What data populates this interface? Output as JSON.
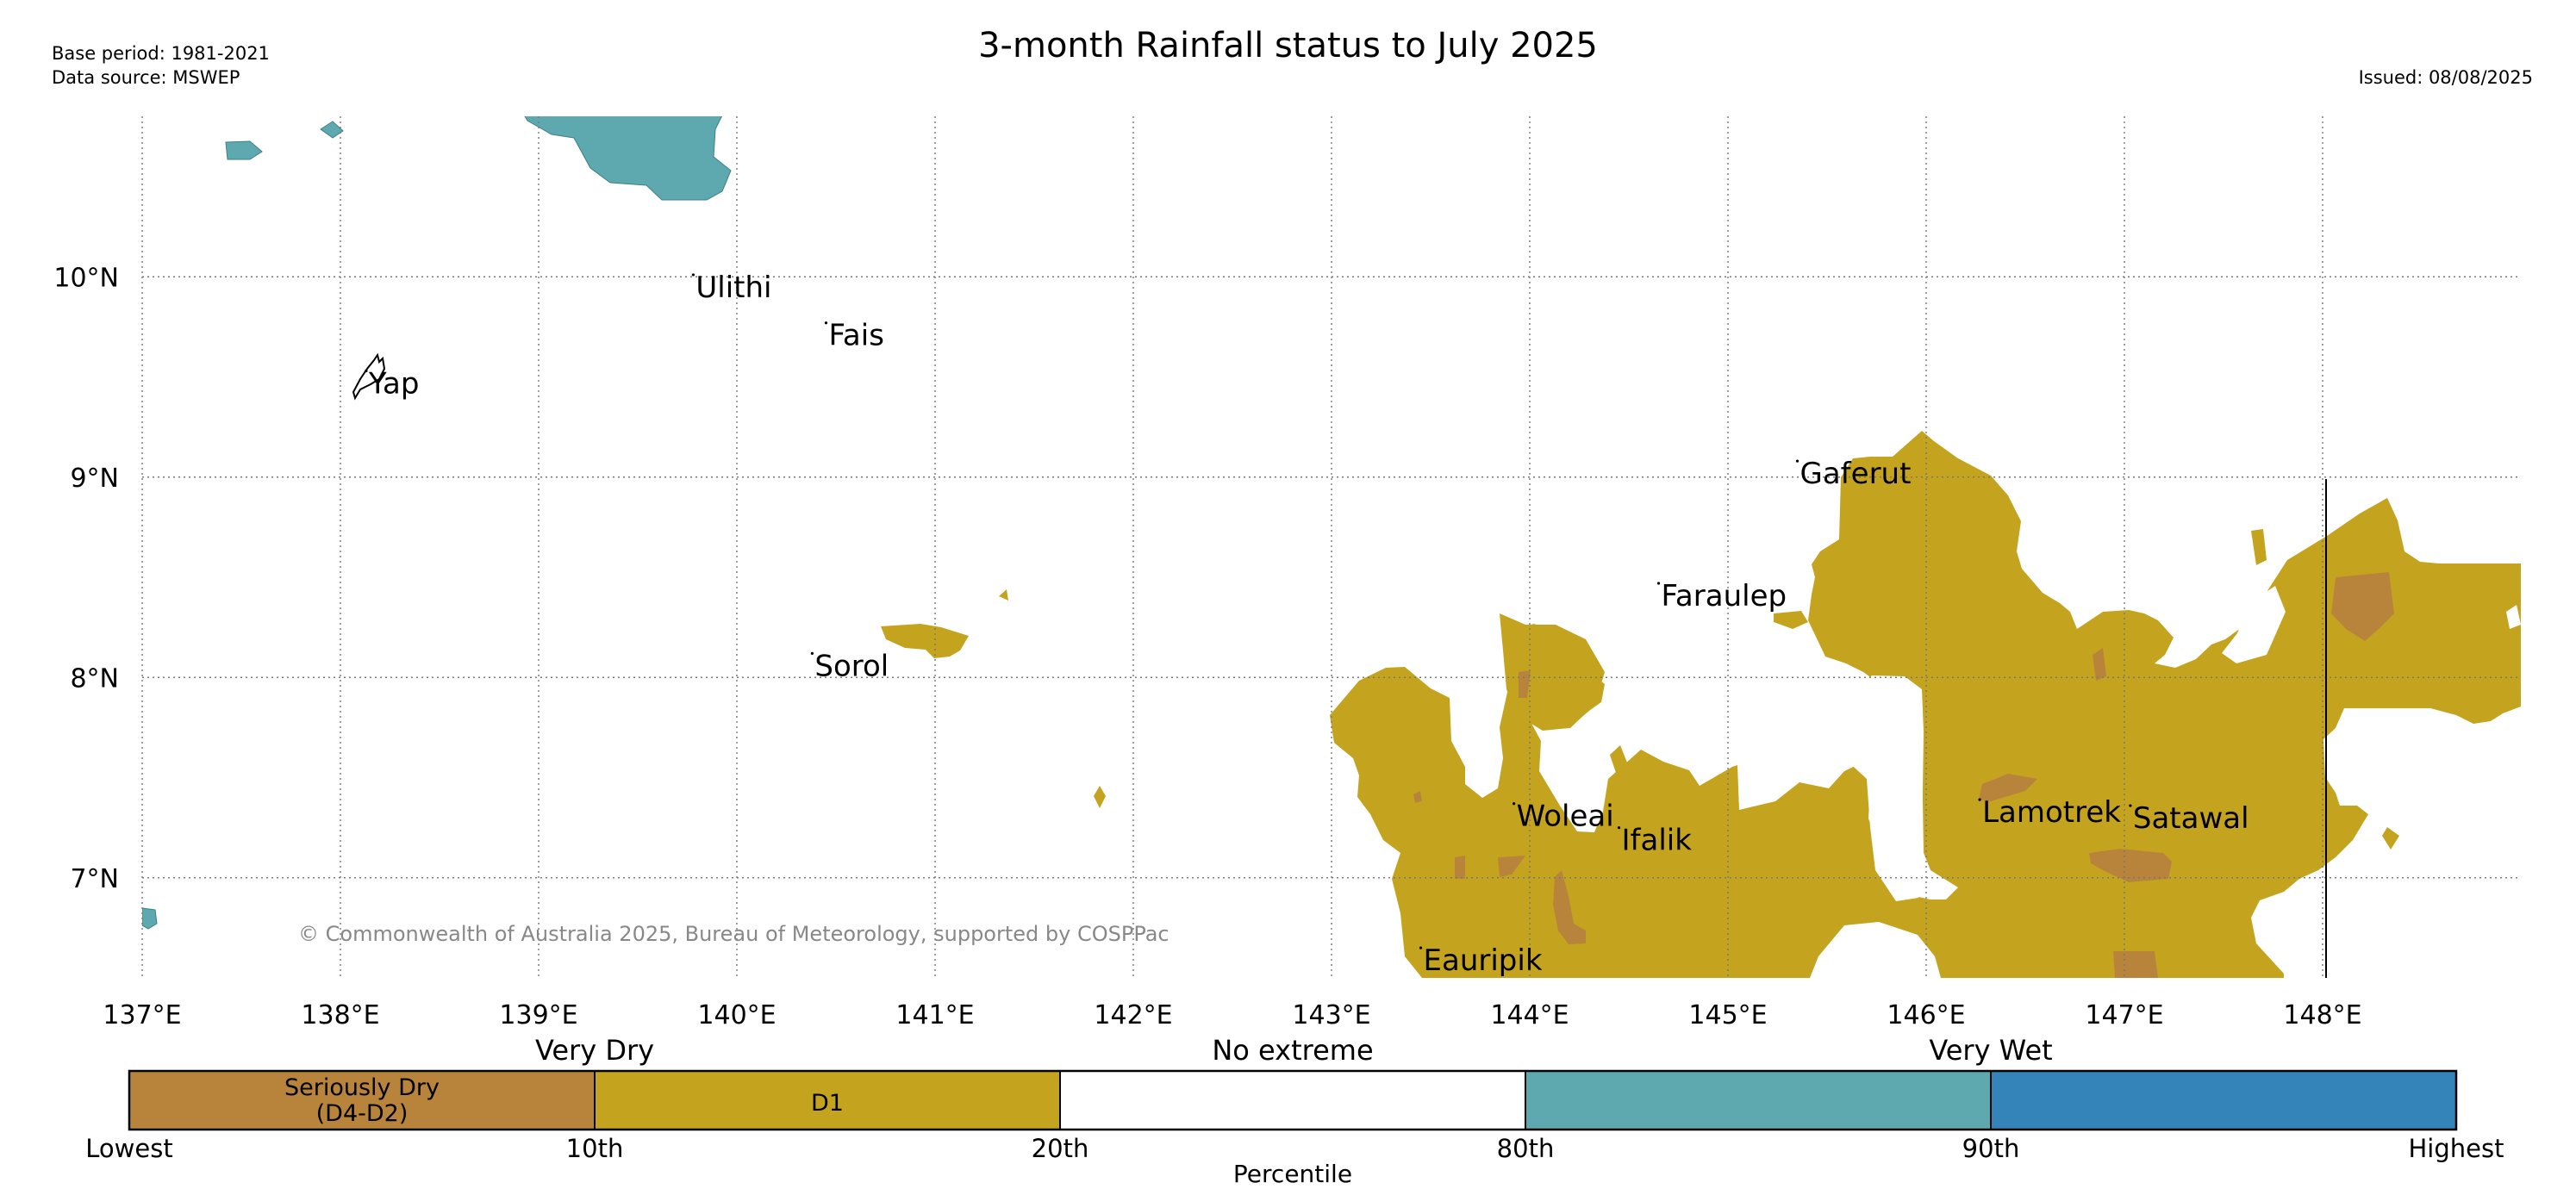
{
  "header": {
    "title": "3-month Rainfall status to July 2025",
    "base_period": "Base period: 1981-2021",
    "data_source": "Data source: MSWEP",
    "issued": "Issued: 08/08/2025"
  },
  "map": {
    "lon_range": [
      137,
      149
    ],
    "lat_range": [
      6.5,
      10.8
    ],
    "lon_ticks": [
      {
        "value": 137,
        "label": "137°E"
      },
      {
        "value": 138,
        "label": "138°E"
      },
      {
        "value": 139,
        "label": "139°E"
      },
      {
        "value": 140,
        "label": "140°E"
      },
      {
        "value": 141,
        "label": "141°E"
      },
      {
        "value": 142,
        "label": "142°E"
      },
      {
        "value": 143,
        "label": "143°E"
      },
      {
        "value": 144,
        "label": "144°E"
      },
      {
        "value": 145,
        "label": "145°E"
      },
      {
        "value": 146,
        "label": "146°E"
      },
      {
        "value": 147,
        "label": "147°E"
      },
      {
        "value": 148,
        "label": "148°E"
      }
    ],
    "lat_ticks": [
      {
        "value": 10,
        "label": "10°N"
      },
      {
        "value": 9,
        "label": "9°N"
      },
      {
        "value": 8,
        "label": "8°N"
      },
      {
        "value": 7,
        "label": "7°N"
      }
    ],
    "grid": true,
    "islands": [
      {
        "name": "Ulithi",
        "lon": 139.78,
        "lat": 10.01
      },
      {
        "name": "Fais",
        "lon": 140.45,
        "lat": 9.77
      },
      {
        "name": "Yap",
        "lon": 138.13,
        "lat": 9.53
      },
      {
        "name": "Gaferut",
        "lon": 145.35,
        "lat": 9.08
      },
      {
        "name": "Faraulep",
        "lon": 144.65,
        "lat": 8.47
      },
      {
        "name": "Sorol",
        "lon": 140.38,
        "lat": 8.12
      },
      {
        "name": "Woleai",
        "lon": 143.92,
        "lat": 7.37
      },
      {
        "name": "Ifalik",
        "lon": 144.45,
        "lat": 7.25
      },
      {
        "name": "Lamotrek",
        "lon": 146.27,
        "lat": 7.39
      },
      {
        "name": "Satawal",
        "lon": 147.03,
        "lat": 7.36
      },
      {
        "name": "Eauripik",
        "lon": 143.45,
        "lat": 6.65
      }
    ],
    "copyright": "© Commonwealth of Australia 2025, Bureau of Meteorology, supported by COSPPac",
    "colors": {
      "seriously_dry": "#b8843c",
      "d1": "#c4a41f",
      "no_extreme": "#ffffff",
      "wet": "#5ea9af",
      "very_wet": "#3584b9"
    }
  },
  "legend": {
    "group_labels": {
      "very_dry": "Very Dry",
      "no_extreme": "No extreme",
      "very_wet": "Very Wet"
    },
    "segments": [
      {
        "label_line1": "Seriously Dry",
        "label_line2": "(D4-D2)",
        "color": "#b8843c"
      },
      {
        "label_line1": "D1",
        "label_line2": "",
        "color": "#c4a41f"
      },
      {
        "label_line1": "",
        "label_line2": "",
        "color": "#ffffff"
      },
      {
        "label_line1": "",
        "label_line2": "",
        "color": "#5ea9af"
      },
      {
        "label_line1": "",
        "label_line2": "",
        "color": "#3584b9"
      }
    ],
    "ticks": [
      "Lowest",
      "10th",
      "20th",
      "80th",
      "90th",
      "Highest"
    ],
    "axis_label": "Percentile"
  }
}
